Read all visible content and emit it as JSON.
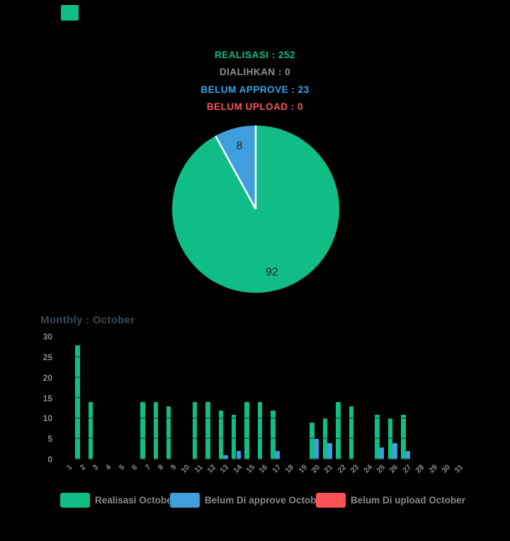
{
  "page": {
    "background": "#000000"
  },
  "brand_mark": {
    "color": "#11bd86"
  },
  "stats": [
    {
      "label": "REALISASI",
      "value": 252,
      "text": "REALISASI : 252",
      "color": "#11bd86"
    },
    {
      "label": "DIALIHKAN",
      "value": 0,
      "text": "DIALIHKAN : 0",
      "color": "#8f9194"
    },
    {
      "label": "BELUM APPROVE",
      "value": 23,
      "text": "BELUM APPROVE : 23",
      "color": "#38a3e8"
    },
    {
      "label": "BELUM UPLOAD",
      "value": 0,
      "text": "BELUM UPLOAD : 0",
      "color": "#fb555b"
    }
  ],
  "chart_data": [
    {
      "type": "pie",
      "labels": [
        "Realisasi",
        "Belum Di approve"
      ],
      "values": [
        92,
        8
      ],
      "data_labels": [
        "92",
        "8"
      ],
      "colors": [
        "#11bd86",
        "#3f9fdd"
      ],
      "label_color": "#1d2428",
      "separator_color": "#ffffff",
      "start_angle_deg": 0,
      "direction": "clockwise"
    },
    {
      "type": "bar",
      "title": "Monthly : October",
      "title_color": "#3c4a57",
      "categories": [
        1,
        2,
        3,
        4,
        5,
        6,
        7,
        8,
        9,
        10,
        11,
        12,
        13,
        14,
        15,
        16,
        17,
        18,
        19,
        20,
        21,
        22,
        23,
        24,
        25,
        26,
        27,
        28,
        29,
        30,
        31
      ],
      "series": [
        {
          "name": "Realisasi October",
          "color": "#11bd86",
          "values": [
            0,
            28,
            14,
            0,
            0,
            0,
            14,
            14,
            13,
            0,
            14,
            14,
            12,
            11,
            14,
            14,
            12,
            0,
            0,
            9,
            10,
            14,
            13,
            0,
            11,
            10,
            11,
            0,
            0,
            0,
            0
          ]
        },
        {
          "name": "Belum Di approve October",
          "color": "#3f9fdd",
          "values": [
            0,
            0,
            0,
            0,
            0,
            0,
            0,
            0,
            0,
            0,
            0,
            0,
            1,
            2,
            0,
            0,
            2,
            0,
            0,
            5,
            4,
            0,
            0,
            0,
            3,
            4,
            2,
            0,
            0,
            0,
            0
          ]
        },
        {
          "name": "Belum Di upload October",
          "color": "#fb5257",
          "values": [
            0,
            0,
            0,
            0,
            0,
            0,
            0,
            0,
            0,
            0,
            0,
            0,
            0,
            0,
            0,
            0,
            0,
            0,
            0,
            0,
            0,
            0,
            0,
            0,
            0,
            0,
            0,
            0,
            0,
            0,
            0
          ]
        }
      ],
      "ylim": [
        0,
        30
      ],
      "yticks": [
        0,
        5,
        10,
        15,
        20,
        25,
        30
      ],
      "grid": false,
      "legend_position": "bottom",
      "axis_label_color": "#8a8c8f"
    }
  ]
}
